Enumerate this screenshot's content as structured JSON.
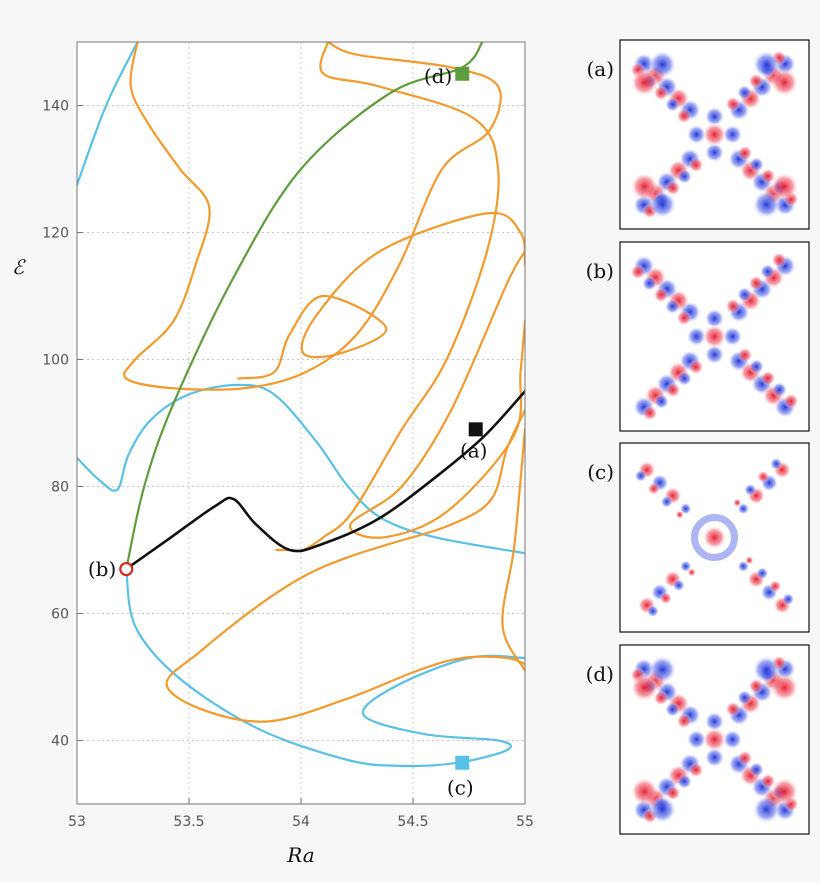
{
  "chart_data": {
    "type": "line",
    "xlabel": "Ra",
    "ylabel": "ℰ",
    "xlim": [
      53,
      55
    ],
    "ylim": [
      30,
      150
    ],
    "x_ticks": [
      "53",
      "53.5",
      "54",
      "54.5",
      "55"
    ],
    "y_ticks": [
      "40",
      "60",
      "80",
      "100",
      "120",
      "140"
    ],
    "x_tick_values": [
      53,
      53.5,
      54,
      54.5,
      55
    ],
    "y_tick_values": [
      40,
      60,
      80,
      100,
      120,
      140
    ],
    "grid": true,
    "series": [
      {
        "color": "#59c0e6",
        "segments": [
          [
            [
              53,
              127.5
            ],
            [
              53.13,
              140
            ],
            [
              53.27,
              150
            ]
          ],
          [
            [
              53,
              84.5
            ],
            [
              53.1,
              81
            ],
            [
              53.18,
              79.5
            ],
            [
              53.23,
              85
            ],
            [
              53.33,
              90.5
            ],
            [
              53.5,
              94.5
            ],
            [
              53.72,
              96
            ],
            [
              53.88,
              94.5
            ],
            [
              54.07,
              87
            ],
            [
              54.21,
              80
            ],
            [
              54.36,
              75
            ],
            [
              54.6,
              72
            ],
            [
              55,
              69.5
            ]
          ],
          [
            [
              53.22,
              67
            ],
            [
              53.26,
              58
            ],
            [
              53.45,
              50
            ],
            [
              53.8,
              42
            ],
            [
              54.2,
              37
            ],
            [
              54.45,
              36
            ],
            [
              54.7,
              36.5
            ],
            [
              54.92,
              38.5
            ],
            [
              54.88,
              40
            ],
            [
              54.55,
              41
            ],
            [
              54.28,
              44
            ],
            [
              54.42,
              48.5
            ],
            [
              54.75,
              53
            ],
            [
              55,
              53
            ]
          ]
        ]
      },
      {
        "color": "#f29a2e",
        "segments": [
          [
            [
              53.27,
              150
            ],
            [
              53.24,
              143
            ],
            [
              53.32,
              137
            ],
            [
              53.46,
              130
            ],
            [
              53.59,
              124
            ],
            [
              53.53,
              115
            ],
            [
              53.43,
              106
            ],
            [
              53.26,
              100
            ],
            [
              53.22,
              97
            ],
            [
              53.42,
              95.5
            ],
            [
              53.75,
              95.5
            ],
            [
              54.02,
              98
            ],
            [
              54.25,
              104
            ],
            [
              54.44,
              115
            ],
            [
              54.63,
              130
            ],
            [
              54.84,
              136
            ],
            [
              54.88,
              143
            ],
            [
              54.67,
              146
            ],
            [
              54.25,
              148
            ],
            [
              54.12,
              150
            ]
          ],
          [
            [
              54.12,
              150
            ],
            [
              54.1,
              145
            ],
            [
              54.35,
              143
            ],
            [
              54.77,
              138
            ],
            [
              54.88,
              130
            ],
            [
              54.83,
              117
            ],
            [
              54.65,
              100
            ],
            [
              54.45,
              89
            ],
            [
              54.23,
              76
            ],
            [
              54.1,
              72
            ],
            [
              54.01,
              70
            ],
            [
              53.95,
              70
            ],
            [
              53.89,
              70
            ]
          ],
          [
            [
              53.72,
              97
            ],
            [
              53.88,
              98
            ],
            [
              53.95,
              104
            ],
            [
              54.1,
              110
            ],
            [
              54.38,
              105
            ],
            [
              54.18,
              101
            ],
            [
              54.01,
              101
            ],
            [
              54.07,
              107
            ],
            [
              54.35,
              117
            ],
            [
              54.83,
              123
            ],
            [
              54.98,
              120
            ],
            [
              55,
              115
            ]
          ],
          [
            [
              55,
              106
            ],
            [
              54.98,
              98
            ],
            [
              54.95,
              88
            ],
            [
              54.65,
              76
            ],
            [
              54.37,
              72
            ],
            [
              54.22,
              74
            ],
            [
              54.45,
              80
            ],
            [
              54.67,
              92
            ],
            [
              54.92,
              112
            ],
            [
              55,
              117
            ]
          ],
          [
            [
              55,
              92
            ],
            [
              54.92,
              86
            ],
            [
              54.85,
              78
            ],
            [
              54.67,
              74
            ],
            [
              54.4,
              71
            ],
            [
              54.22,
              69
            ],
            [
              54.02,
              66
            ],
            [
              53.8,
              61
            ],
            [
              53.55,
              54
            ],
            [
              53.4,
              49
            ],
            [
              53.55,
              45
            ],
            [
              53.85,
              43
            ],
            [
              54.2,
              46.5
            ],
            [
              54.52,
              51
            ],
            [
              54.72,
              53
            ],
            [
              54.92,
              53
            ],
            [
              55,
              52
            ]
          ],
          [
            [
              55,
              89
            ],
            [
              54.98,
              81
            ],
            [
              54.95,
              70
            ],
            [
              54.9,
              58
            ],
            [
              55,
              51
            ]
          ]
        ]
      },
      {
        "color": "#5e9c3e",
        "segments": [
          [
            [
              53.22,
              67
            ],
            [
              53.3,
              80
            ],
            [
              53.43,
              93
            ],
            [
              53.7,
              113
            ],
            [
              54.0,
              130
            ],
            [
              54.4,
              142
            ],
            [
              54.72,
              146
            ],
            [
              54.81,
              150
            ]
          ]
        ]
      },
      {
        "color": "#111111",
        "segments": [
          [
            [
              53.22,
              67
            ],
            [
              53.42,
              72
            ],
            [
              53.62,
              77
            ],
            [
              53.7,
              78
            ],
            [
              53.8,
              74
            ],
            [
              53.95,
              70
            ],
            [
              54.1,
              71
            ],
            [
              54.35,
              75
            ],
            [
              54.62,
              82
            ],
            [
              54.82,
              88
            ],
            [
              55,
              95
            ]
          ]
        ]
      }
    ],
    "points": [
      {
        "label": "(a)",
        "x": 54.78,
        "y": 89,
        "marker": "square",
        "color": "#111111"
      },
      {
        "label": "(b)",
        "x": 53.22,
        "y": 67,
        "marker": "circle",
        "color": "#d42a1f"
      },
      {
        "label": "(c)",
        "x": 54.72,
        "y": 36.5,
        "marker": "square",
        "color": "#59c0e6"
      },
      {
        "label": "(d)",
        "x": 54.72,
        "y": 145,
        "marker": "square",
        "color": "#5e9c3e"
      }
    ],
    "panels": [
      "(a)",
      "(b)",
      "(c)",
      "(d)"
    ]
  }
}
